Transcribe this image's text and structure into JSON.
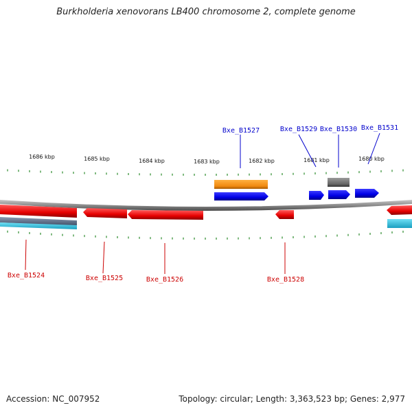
{
  "title": "Burkholderia xenovorans LB400 chromosome 2, complete genome",
  "footer": {
    "accession": "Accession: NC_007952",
    "summary": "Topology: circular; Length: 3,363,523 bp; Genes: 2,977"
  },
  "scale_labels": [
    "1686 kbp",
    "1685 kbp",
    "1684 kbp",
    "1683 kbp",
    "1682 kbp",
    "1681 kbp",
    "1680 kbp"
  ],
  "colors": {
    "forward_gene": "#0000ee",
    "reverse_gene": "#ee0000",
    "forward_label": "#0000cc",
    "reverse_label": "#cc0000",
    "backbone": "#8c8c8c",
    "tick": "#2a8a2a",
    "orange_feature": "#f08a10",
    "gray_feature": "#666666",
    "teal_track": "#2ab7d6",
    "slate_track": "#5b6e8a"
  },
  "genes_forward": [
    "Bxe_B1527",
    "Bxe_B1529",
    "Bxe_B1530",
    "Bxe_B1531"
  ],
  "genes_reverse": [
    "Bxe_B1524",
    "Bxe_B1525",
    "Bxe_B1526",
    "Bxe_B1528"
  ]
}
